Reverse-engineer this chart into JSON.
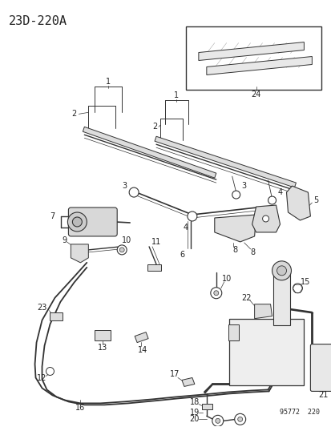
{
  "title": "23D-220A",
  "watermark": "95772  220",
  "bg_color": "#ffffff",
  "fig_width": 4.14,
  "fig_height": 5.33,
  "dpi": 100
}
